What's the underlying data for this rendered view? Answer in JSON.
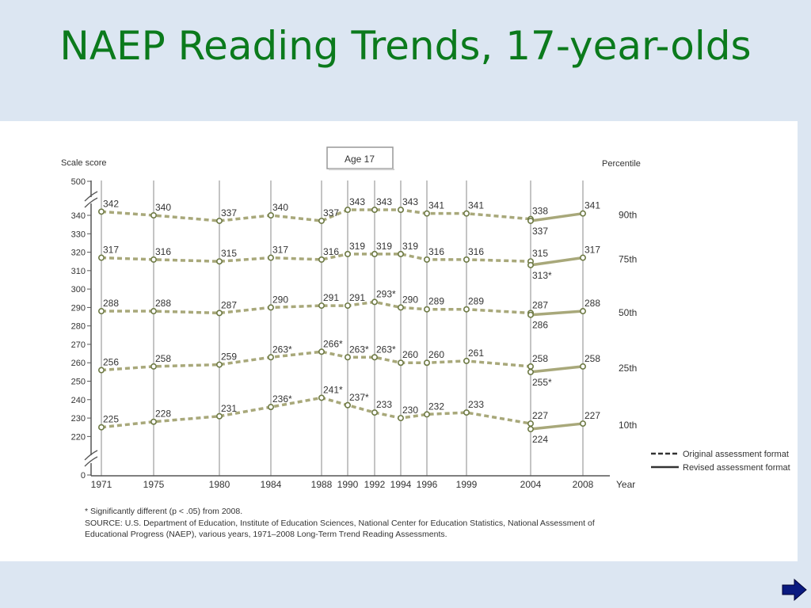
{
  "slide": {
    "title": "NAEP Reading Trends, 17-year-olds"
  },
  "icons": {
    "next": "right-arrow-icon"
  },
  "colors": {
    "title": "#0b7a1c",
    "background": "#dce6f2",
    "series": "#a8a87a",
    "marker": "#6e7a45"
  },
  "chart_data": {
    "type": "line",
    "age_label": "Age 17",
    "ylabel": "Scale score",
    "xlabel": "Year",
    "right_label": "Percentile",
    "ylim": [
      200,
      350
    ],
    "y_break": true,
    "y_ticks": [
      "500",
      "340",
      "330",
      "320",
      "310",
      "300",
      "290",
      "280",
      "270",
      "260",
      "250",
      "240",
      "230",
      "220",
      "0"
    ],
    "x": [
      "1971",
      "1975",
      "1980",
      "1984",
      "1988",
      "1990",
      "1992",
      "1994",
      "1996",
      "1999",
      "2004",
      "2008"
    ],
    "series": [
      {
        "name": "90th",
        "original": [
          342,
          340,
          337,
          340,
          337,
          343,
          343,
          343,
          341,
          341,
          338
        ],
        "revised": [
          337,
          341
        ],
        "labels": [
          "342",
          "340",
          "337",
          "340",
          "337",
          "343",
          "343",
          "343",
          "341",
          "341",
          "338",
          "337",
          "341"
        ]
      },
      {
        "name": "75th",
        "original": [
          317,
          316,
          315,
          317,
          316,
          319,
          319,
          319,
          316,
          316,
          315
        ],
        "revised": [
          313,
          317
        ],
        "labels": [
          "317",
          "316",
          "315",
          "317",
          "316",
          "319",
          "319",
          "319",
          "316",
          "316",
          "315",
          "313*",
          "317"
        ]
      },
      {
        "name": "50th",
        "original": [
          288,
          288,
          287,
          290,
          291,
          291,
          293,
          290,
          289,
          289,
          287
        ],
        "revised": [
          286,
          288
        ],
        "labels": [
          "288",
          "288",
          "287",
          "290",
          "291",
          "291",
          "293*",
          "290",
          "289",
          "289",
          "287",
          "286",
          "288"
        ]
      },
      {
        "name": "25th",
        "original": [
          256,
          258,
          259,
          263,
          266,
          263,
          263,
          260,
          260,
          261,
          258
        ],
        "revised": [
          255,
          258
        ],
        "labels": [
          "256",
          "258",
          "259",
          "263*",
          "266*",
          "263*",
          "263*",
          "260",
          "260",
          "261",
          "258",
          "255*",
          "258"
        ]
      },
      {
        "name": "10th",
        "original": [
          225,
          228,
          231,
          236,
          241,
          237,
          233,
          230,
          232,
          233,
          227
        ],
        "revised": [
          224,
          227
        ],
        "labels": [
          "225",
          "228",
          "231",
          "236*",
          "241*",
          "237*",
          "233",
          "230",
          "232",
          "233",
          "227",
          "224",
          "227"
        ]
      }
    ],
    "legend": {
      "original": "Original assessment format",
      "revised": "Revised assessment format"
    },
    "footnote": "* Significantly different (p < .05) from 2008.",
    "source_lines": [
      "SOURCE: U.S. Department of Education, Institute of Education Sciences, National Center for Education Statistics, National Assessment of",
      "Educational Progress (NAEP), various years, 1971–2008 Long-Term Trend Reading Assessments."
    ]
  }
}
